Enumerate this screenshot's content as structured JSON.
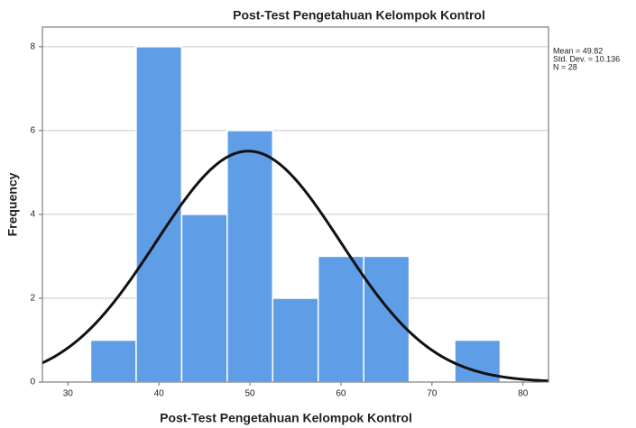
{
  "chart_data": {
    "type": "histogram",
    "title": "Post-Test Pengetahuan Kelompok Kontrol",
    "x_label": "Post-Test Pengetahuan Kelompok Kontrol",
    "y_label": "Frequency",
    "bins": [
      32.5,
      37.5,
      42.5,
      47.5,
      52.5,
      57.5,
      62.5,
      67.5,
      72.5,
      77.5
    ],
    "counts": [
      1,
      8,
      4,
      6,
      2,
      3,
      3,
      0,
      1
    ],
    "color": "#5f9ee6",
    "curve_color": "#111111",
    "xlim": [
      27.2,
      82.8
    ],
    "ylim": [
      0,
      8.47
    ],
    "xticks": [
      30,
      40,
      50,
      60,
      70,
      80
    ],
    "yticks": [
      0,
      2,
      4,
      6,
      8
    ],
    "grid": true,
    "stats": [
      {
        "value": 49.82,
        "label": "Mean = 49.82"
      },
      {
        "value": 10.136,
        "label": "Std. Dev. = 10.136"
      },
      {
        "value": 28,
        "label": "N = 28"
      }
    ]
  }
}
